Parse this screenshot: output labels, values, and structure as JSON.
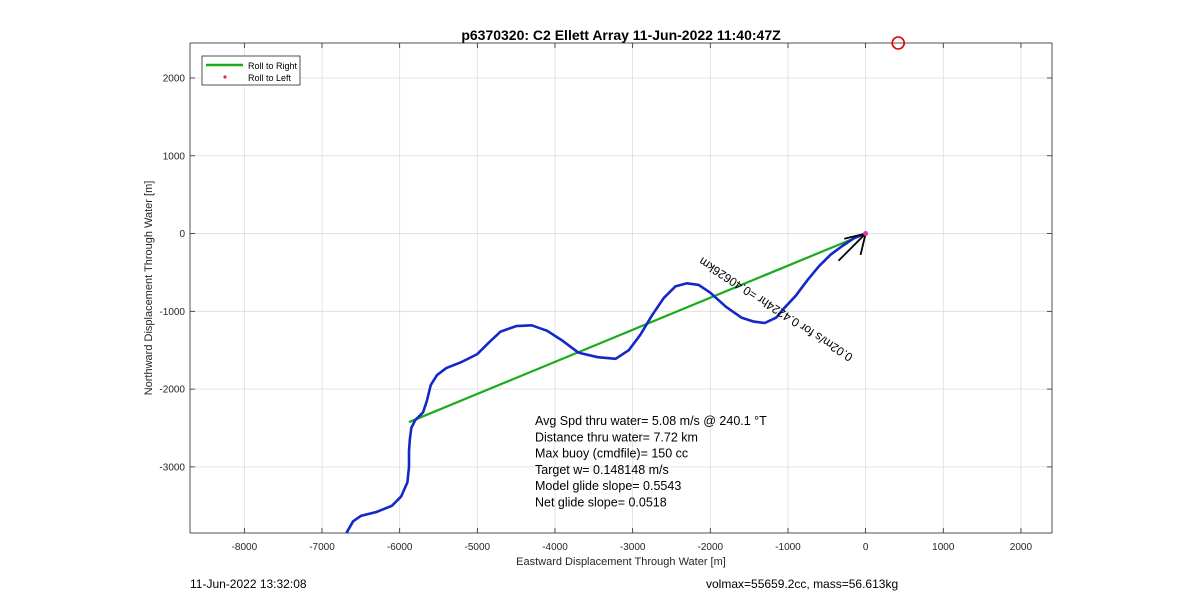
{
  "chart_data": {
    "type": "line",
    "title": "p6370320: C2 Ellett Array 11-Jun-2022 11:40:47Z",
    "xlabel": "Eastward Displacement Through Water [m]",
    "ylabel": "Northward Displacement Through Water [m]",
    "xlim": [
      -8700,
      2400
    ],
    "ylim": [
      -3850,
      2450
    ],
    "xticks": [
      -8000,
      -7000,
      -6000,
      -5000,
      -4000,
      -3000,
      -2000,
      -1000,
      0,
      1000,
      2000
    ],
    "yticks": [
      -3000,
      -2000,
      -1000,
      0,
      1000,
      2000
    ],
    "grid": true,
    "legend_position": "top-left",
    "legend": [
      {
        "label": "Roll to Right",
        "color": "#1aaa1a",
        "marker": "line"
      },
      {
        "label": "Roll to Left",
        "color": "#e0284f",
        "marker": "dot"
      }
    ],
    "series": [
      {
        "name": "Roll to Right",
        "color": "#1aaa1a",
        "points": [
          [
            0,
            0
          ],
          [
            -5870,
            -2420
          ]
        ]
      },
      {
        "color": "#1428c8",
        "points": [
          [
            -6680,
            -3840
          ],
          [
            -6600,
            -3700
          ],
          [
            -6500,
            -3630
          ],
          [
            -6300,
            -3580
          ],
          [
            -6100,
            -3500
          ],
          [
            -5980,
            -3380
          ],
          [
            -5900,
            -3200
          ],
          [
            -5880,
            -3000
          ],
          [
            -5880,
            -2800
          ],
          [
            -5870,
            -2650
          ],
          [
            -5850,
            -2500
          ],
          [
            -5800,
            -2400
          ],
          [
            -5700,
            -2300
          ],
          [
            -5650,
            -2150
          ],
          [
            -5600,
            -1950
          ],
          [
            -5520,
            -1820
          ],
          [
            -5400,
            -1730
          ],
          [
            -5200,
            -1650
          ],
          [
            -5000,
            -1550
          ],
          [
            -4850,
            -1400
          ],
          [
            -4700,
            -1260
          ],
          [
            -4500,
            -1190
          ],
          [
            -4300,
            -1180
          ],
          [
            -4100,
            -1250
          ],
          [
            -3900,
            -1380
          ],
          [
            -3700,
            -1530
          ],
          [
            -3450,
            -1590
          ],
          [
            -3220,
            -1610
          ],
          [
            -3050,
            -1500
          ],
          [
            -2900,
            -1300
          ],
          [
            -2750,
            -1050
          ],
          [
            -2600,
            -830
          ],
          [
            -2450,
            -680
          ],
          [
            -2300,
            -640
          ],
          [
            -2150,
            -660
          ],
          [
            -2000,
            -760
          ],
          [
            -1800,
            -940
          ],
          [
            -1600,
            -1080
          ],
          [
            -1450,
            -1130
          ],
          [
            -1300,
            -1150
          ],
          [
            -1150,
            -1080
          ],
          [
            -1050,
            -960
          ],
          [
            -900,
            -800
          ],
          [
            -750,
            -600
          ],
          [
            -600,
            -420
          ],
          [
            -450,
            -270
          ],
          [
            -300,
            -160
          ],
          [
            -150,
            -60
          ],
          [
            0,
            0
          ]
        ]
      }
    ],
    "markers": [
      {
        "x": 420,
        "y": 2450,
        "color": "#e00000",
        "shape": "circle"
      }
    ],
    "current_arrow": {
      "x": 0,
      "y": 0,
      "dx": -350,
      "dy": -350,
      "color": "#000000"
    },
    "arrow_label": "0.02m/s for 0.4224hr =0.40626km",
    "annotations": [
      "Avg Spd thru water=  5.08 m/s @ 240.1 °T",
      "Distance thru water=  7.72 km",
      "Max buoy (cmdfile)= 150 cc",
      "Target w= 0.148148 m/s",
      "Model glide slope= 0.5543",
      "Net glide slope= 0.0518"
    ]
  },
  "footer": {
    "timestamp": "11-Jun-2022 13:32:08",
    "info": "volmax=55659.2cc, mass=56.613kg"
  }
}
